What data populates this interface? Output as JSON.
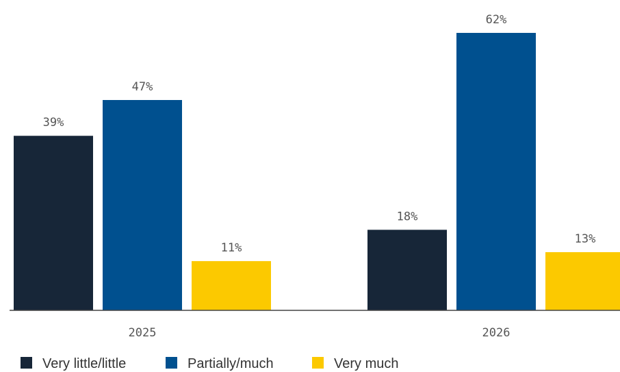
{
  "chart_data": {
    "type": "bar",
    "categories": [
      "2025",
      "2026"
    ],
    "series": [
      {
        "name": "Very little/little",
        "color": "#172638",
        "values": [
          39,
          18
        ],
        "value_labels": [
          "39%",
          "18%"
        ]
      },
      {
        "name": "Partially/much",
        "color": "#00508f",
        "values": [
          47,
          62
        ],
        "value_labels": [
          "47%",
          "62%"
        ]
      },
      {
        "name": "Very much",
        "color": "#fcc900",
        "values": [
          11,
          13
        ],
        "value_labels": [
          "11%",
          "13%"
        ]
      }
    ],
    "legend": "bottom-left"
  }
}
